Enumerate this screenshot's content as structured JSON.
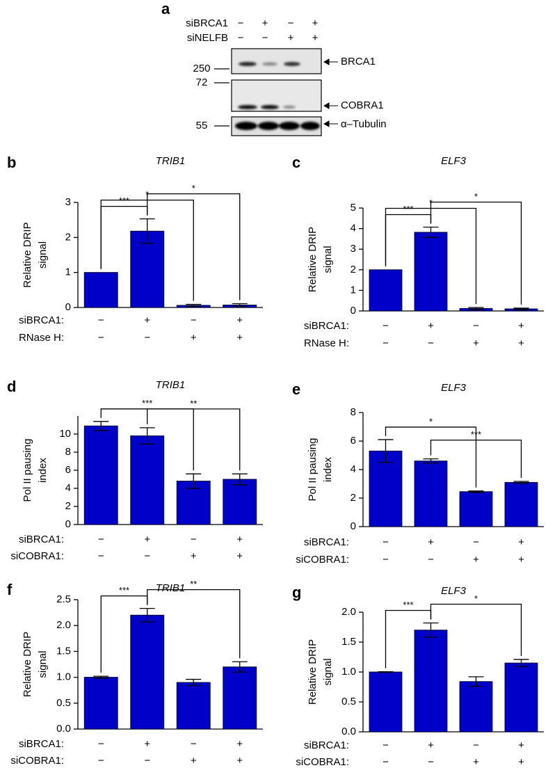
{
  "blot": {
    "panel": "a",
    "conditions": [
      {
        "name": "siBRCA1",
        "signs": [
          "−",
          "+",
          "−",
          "+"
        ]
      },
      {
        "name": "siNELFB",
        "signs": [
          "−",
          "−",
          "+",
          "+"
        ]
      }
    ],
    "markers": [
      "250",
      "72",
      "55"
    ],
    "bands": [
      "BRCA1",
      "COBRA1",
      "α–Tubulin"
    ]
  },
  "chart_data": [
    {
      "type": "bar",
      "panel": "b",
      "title": "TRIB1",
      "ylabel": [
        "Relative DRIP",
        "signal"
      ],
      "series": [
        {
          "color": "#0000c8",
          "values": [
            1.0,
            2.18,
            0.06,
            0.07
          ],
          "errors": [
            0.0,
            0.35,
            0.03,
            0.04
          ]
        }
      ],
      "ylim": [
        0,
        3
      ],
      "yticks": [
        0,
        1,
        2,
        3
      ],
      "conditions": [
        {
          "name": "siBRCA1:",
          "signs": [
            "−",
            "+",
            "−",
            "+"
          ]
        },
        {
          "name": "RNase H:",
          "signs": [
            "−",
            "−",
            "+",
            "+"
          ]
        }
      ],
      "significance": [
        {
          "from": 0,
          "to": 1,
          "label": "***"
        },
        {
          "from": 0,
          "to": 2,
          "label": "*"
        },
        {
          "from": 1,
          "to": 3,
          "label": "*"
        }
      ]
    },
    {
      "type": "bar",
      "panel": "c",
      "title": "ELF3",
      "ylabel": [
        "Relative DRIP",
        "signal"
      ],
      "series": [
        {
          "color": "#0000c8",
          "values": [
            2.0,
            3.82,
            0.12,
            0.1
          ],
          "errors": [
            0.0,
            0.25,
            0.05,
            0.04
          ]
        }
      ],
      "ylim": [
        0,
        5
      ],
      "yticks": [
        0,
        1,
        2,
        3,
        4,
        5
      ],
      "conditions": [
        {
          "name": "siBRCA1:",
          "signs": [
            "−",
            "+",
            "−",
            "+"
          ]
        },
        {
          "name": "RNase H:",
          "signs": [
            "−",
            "−",
            "+",
            "+"
          ]
        }
      ],
      "significance": [
        {
          "from": 0,
          "to": 1,
          "label": "***"
        },
        {
          "from": 0,
          "to": 2,
          "label": "*"
        },
        {
          "from": 1,
          "to": 3,
          "label": "*"
        }
      ]
    },
    {
      "type": "bar",
      "panel": "d",
      "title": "TRIB1",
      "ylabel": [
        "Pol II pausing",
        "index"
      ],
      "series": [
        {
          "color": "#0000c8",
          "values": [
            10.9,
            9.8,
            4.8,
            5.0
          ],
          "errors": [
            0.5,
            0.9,
            0.8,
            0.6
          ]
        }
      ],
      "ylim": [
        0,
        12
      ],
      "yticks": [
        0,
        2,
        4,
        6,
        8,
        10
      ],
      "conditions": [
        {
          "name": "siBRCA1:",
          "signs": [
            "−",
            "+",
            "−",
            "+"
          ]
        },
        {
          "name": "siCOBRA1:",
          "signs": [
            "−",
            "−",
            "+",
            "+"
          ]
        }
      ],
      "significance": [
        {
          "from": 0,
          "to": 2,
          "label": "***"
        },
        {
          "from": 1,
          "to": 3,
          "label": "**"
        }
      ]
    },
    {
      "type": "bar",
      "panel": "e",
      "title": "ELF3",
      "ylabel": [
        "Pol II pausing",
        "index"
      ],
      "series": [
        {
          "color": "#0000c8",
          "values": [
            5.3,
            4.6,
            2.45,
            3.1
          ],
          "errors": [
            0.8,
            0.15,
            0.05,
            0.07
          ]
        }
      ],
      "ylim": [
        0,
        8
      ],
      "yticks": [
        0,
        2,
        4,
        6,
        8
      ],
      "conditions": [
        {
          "name": "siBRCA1:",
          "signs": [
            "−",
            "+",
            "−",
            "+"
          ]
        },
        {
          "name": "siCOBRA1:",
          "signs": [
            "−",
            "−",
            "+",
            "+"
          ]
        }
      ],
      "significance": [
        {
          "from": 0,
          "to": 2,
          "label": "*"
        },
        {
          "from": 1,
          "to": 3,
          "label": "***"
        }
      ]
    },
    {
      "type": "bar",
      "panel": "f",
      "title": "TRIB1",
      "ylabel": [
        "Relative DRIP",
        "signal"
      ],
      "series": [
        {
          "color": "#0000c8",
          "values": [
            1.0,
            2.2,
            0.9,
            1.2
          ],
          "errors": [
            0.02,
            0.13,
            0.06,
            0.1
          ]
        }
      ],
      "ylim": [
        0,
        2.5
      ],
      "yticks": [
        {
          "value": 0,
          "label": "0.0"
        },
        0.5,
        {
          "value": 1,
          "label": "1.0"
        },
        1.5,
        {
          "value": 2,
          "label": "2.0"
        },
        2.5
      ],
      "conditions": [
        {
          "name": "siBRCA1:",
          "signs": [
            "−",
            "+",
            "−",
            "+"
          ]
        },
        {
          "name": "siCOBRA1:",
          "signs": [
            "−",
            "−",
            "+",
            "+"
          ]
        }
      ],
      "significance": [
        {
          "from": 0,
          "to": 1,
          "label": "***"
        },
        {
          "from": 1,
          "to": 3,
          "label": "**"
        }
      ]
    },
    {
      "type": "bar",
      "panel": "g",
      "title": "ELF3",
      "ylabel": [
        "Relative DRIP",
        "signal"
      ],
      "series": [
        {
          "color": "#0000c8",
          "values": [
            1.0,
            1.7,
            0.84,
            1.15
          ],
          "errors": [
            0.005,
            0.12,
            0.08,
            0.06
          ]
        }
      ],
      "ylim": [
        0,
        2
      ],
      "yticks": [
        {
          "value": 0,
          "label": "0.0"
        },
        0.5,
        {
          "value": 1,
          "label": "1.0"
        },
        1.5,
        {
          "value": 2,
          "label": "2.0"
        }
      ],
      "conditions": [
        {
          "name": "siBRCA1:",
          "signs": [
            "−",
            "+",
            "−",
            "+"
          ]
        },
        {
          "name": "siCOBRA1:",
          "signs": [
            "−",
            "−",
            "+",
            "+"
          ]
        }
      ],
      "significance": [
        {
          "from": 0,
          "to": 1,
          "label": "***"
        },
        {
          "from": 1,
          "to": 3,
          "label": "*"
        }
      ]
    }
  ]
}
